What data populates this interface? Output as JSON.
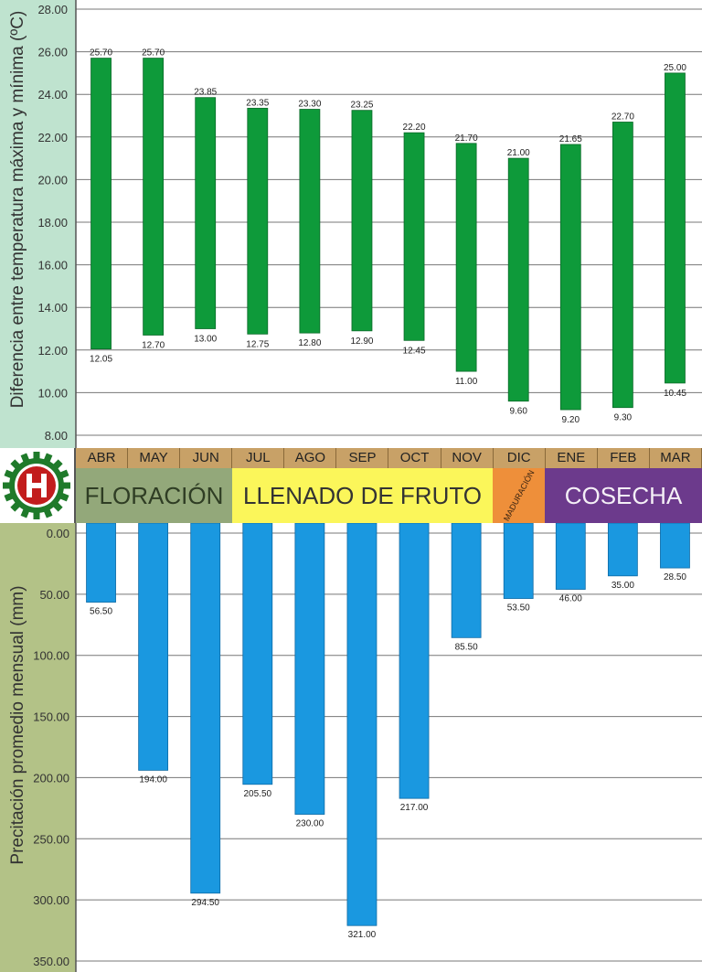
{
  "chart_data": [
    {
      "type": "bar",
      "subtype": "floating-range",
      "ylabel": "Diferencia entre temperatura máxima y mínima (ºC)",
      "ylim": [
        8,
        28
      ],
      "yticks": [
        "8.00",
        "10.00",
        "12.00",
        "14.00",
        "16.00",
        "18.00",
        "20.00",
        "22.00",
        "24.00",
        "26.00",
        "28.00"
      ],
      "grid": true,
      "bar_color": "#0e9a3a",
      "categories": [
        "ABR",
        "MAY",
        "JUN",
        "JUL",
        "AGO",
        "SEP",
        "OCT",
        "NOV",
        "DIC",
        "ENE",
        "FEB",
        "MAR"
      ],
      "max": [
        25.7,
        25.7,
        23.85,
        23.35,
        23.3,
        23.25,
        22.2,
        21.7,
        21.0,
        21.65,
        22.7,
        25.0
      ],
      "min": [
        12.05,
        12.7,
        13.0,
        12.75,
        12.8,
        12.9,
        12.45,
        11.0,
        9.6,
        9.2,
        9.3,
        10.45
      ],
      "max_labels": [
        "25.70",
        "25.70",
        "23.85",
        "23.35",
        "23.30",
        "23.25",
        "22.20",
        "21.70",
        "21.00",
        "21.65",
        "22.70",
        "25.00"
      ],
      "min_labels": [
        "12.05",
        "12.70",
        "13.00",
        "12.75",
        "12.80",
        "12.90",
        "12.45",
        "11.00",
        "9.60",
        "9.20",
        "9.30",
        "10.45"
      ]
    },
    {
      "type": "bar",
      "subtype": "inverted",
      "ylabel": "Precitación promedio mensual (mm)",
      "ylim": [
        0,
        350
      ],
      "yticks": [
        "0.00",
        "50.00",
        "100.00",
        "150.00",
        "200.00",
        "250.00",
        "300.00",
        "350.00"
      ],
      "grid": true,
      "bar_color": "#1a98e0",
      "categories": [
        "ABR",
        "MAY",
        "JUN",
        "JUL",
        "AGO",
        "SEP",
        "OCT",
        "NOV",
        "DIC",
        "ENE",
        "FEB",
        "MAR"
      ],
      "values": [
        56.5,
        194.0,
        294.5,
        205.5,
        230.0,
        321.0,
        217.0,
        85.5,
        53.5,
        46.0,
        35.0,
        28.5
      ],
      "value_labels": [
        "56.50",
        "194.00",
        "294.50",
        "205.50",
        "230.00",
        "321.00",
        "217.00",
        "85.50",
        "53.50",
        "46.00",
        "35.00",
        "28.50"
      ]
    }
  ],
  "months": [
    "ABR",
    "MAY",
    "JUN",
    "JUL",
    "AGO",
    "SEP",
    "OCT",
    "NOV",
    "DIC",
    "ENE",
    "FEB",
    "MAR"
  ],
  "phases": {
    "floracion": "FLORACIÓN",
    "llenado": "LLENADO DE FRUTO",
    "maduracion": "MADURACIÓN",
    "cosecha": "COSECHA"
  },
  "colors": {
    "top_axis_bg": "#bfe3cf",
    "bottom_axis_bg": "#b3c287",
    "months_bg": "#c8a167",
    "floracion": "#93a87a",
    "llenado": "#fbf65a",
    "maduracion": "#ee8f3a",
    "cosecha": "#6c3a8c",
    "logo_red": "#c21d1d",
    "logo_green": "#1f7a2a"
  }
}
